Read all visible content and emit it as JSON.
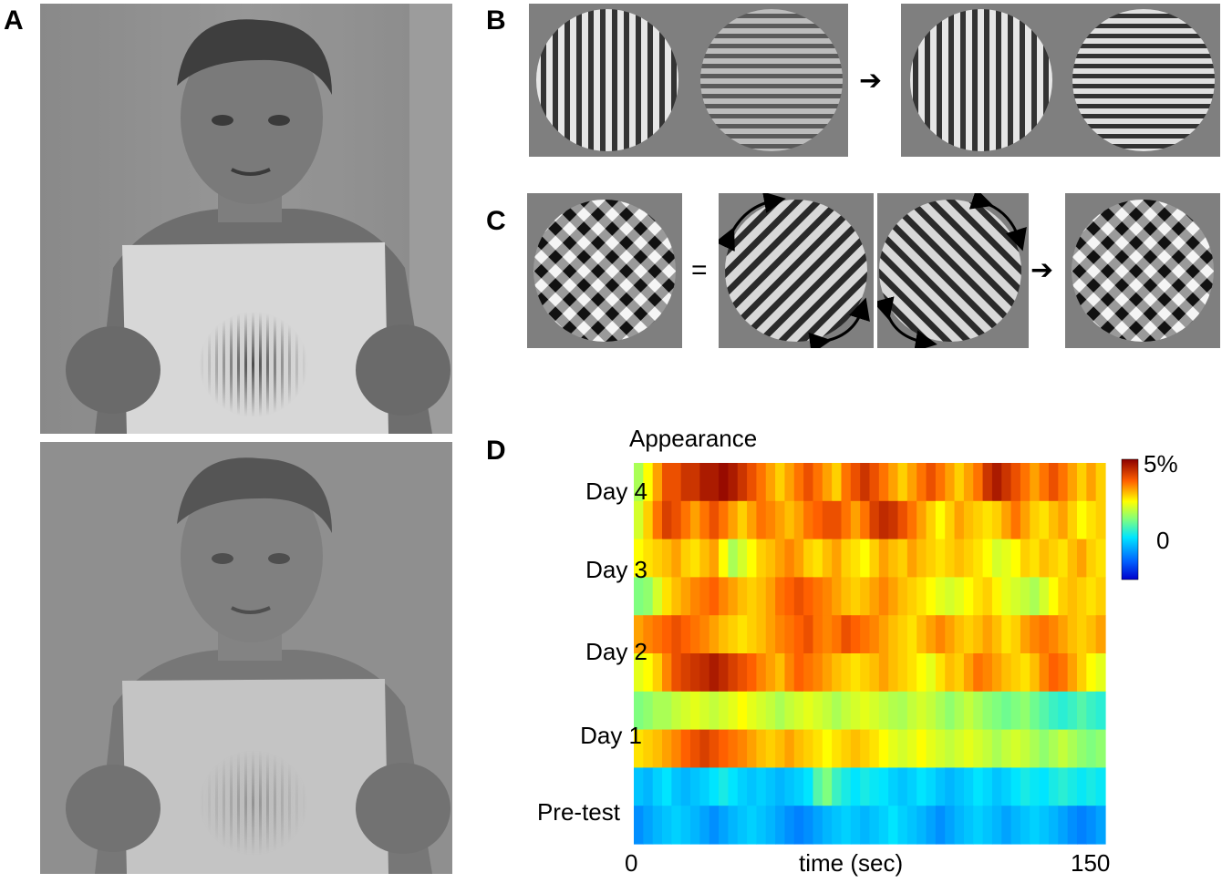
{
  "panels": {
    "a": "A",
    "b": "B",
    "c": "C",
    "d": "D"
  },
  "symbols": {
    "arrow": "➔",
    "equals": "="
  },
  "chart_data": {
    "type": "heatmap",
    "title": "Appearance",
    "xlabel": "time (sec)",
    "xlim": [
      0,
      150
    ],
    "x_ticks": [
      "0",
      "150"
    ],
    "rows": [
      "Day 4",
      "Day 3",
      "Day 2",
      "Day 1",
      "Pre-test"
    ],
    "colorbar": {
      "min_label": "0",
      "max_label": "5%",
      "colormap": "jet"
    },
    "colors": {
      "low": "#0000cc",
      "high": "#8b0000"
    },
    "segment_count": 50,
    "subrow_levels": [
      [
        0.55,
        0.65,
        0.75,
        0.85,
        0.85,
        0.9,
        0.9,
        0.95,
        0.95,
        0.98,
        0.95,
        0.9,
        0.85,
        0.8,
        0.75,
        0.7,
        0.75,
        0.8,
        0.85,
        0.8,
        0.75,
        0.7,
        0.8,
        0.85,
        0.9,
        0.85,
        0.8,
        0.75,
        0.7,
        0.75,
        0.8,
        0.85,
        0.8,
        0.75,
        0.7,
        0.75,
        0.8,
        0.9,
        0.95,
        0.9,
        0.85,
        0.8,
        0.75,
        0.8,
        0.85,
        0.8,
        0.75,
        0.7,
        0.75,
        0.7
      ],
      [
        0.6,
        0.7,
        0.8,
        0.88,
        0.85,
        0.8,
        0.75,
        0.8,
        0.85,
        0.8,
        0.75,
        0.7,
        0.75,
        0.8,
        0.78,
        0.75,
        0.72,
        0.75,
        0.8,
        0.82,
        0.85,
        0.85,
        0.8,
        0.75,
        0.8,
        0.88,
        0.92,
        0.9,
        0.85,
        0.8,
        0.75,
        0.7,
        0.65,
        0.7,
        0.75,
        0.72,
        0.7,
        0.68,
        0.7,
        0.75,
        0.8,
        0.75,
        0.7,
        0.68,
        0.72,
        0.75,
        0.7,
        0.65,
        0.68,
        0.7
      ],
      [
        0.65,
        0.68,
        0.7,
        0.72,
        0.75,
        0.7,
        0.68,
        0.72,
        0.75,
        0.65,
        0.55,
        0.6,
        0.65,
        0.7,
        0.72,
        0.75,
        0.78,
        0.75,
        0.7,
        0.68,
        0.72,
        0.75,
        0.7,
        0.68,
        0.65,
        0.7,
        0.75,
        0.72,
        0.7,
        0.75,
        0.72,
        0.7,
        0.68,
        0.7,
        0.72,
        0.7,
        0.68,
        0.65,
        0.6,
        0.62,
        0.65,
        0.7,
        0.68,
        0.72,
        0.7,
        0.68,
        0.72,
        0.75,
        0.7,
        0.68
      ],
      [
        0.5,
        0.52,
        0.6,
        0.68,
        0.72,
        0.75,
        0.78,
        0.8,
        0.82,
        0.78,
        0.75,
        0.72,
        0.7,
        0.72,
        0.75,
        0.8,
        0.82,
        0.85,
        0.82,
        0.8,
        0.78,
        0.75,
        0.72,
        0.7,
        0.72,
        0.75,
        0.78,
        0.75,
        0.72,
        0.7,
        0.68,
        0.65,
        0.62,
        0.6,
        0.62,
        0.65,
        0.68,
        0.7,
        0.66,
        0.62,
        0.6,
        0.58,
        0.55,
        0.6,
        0.65,
        0.7,
        0.72,
        0.7,
        0.68,
        0.7
      ],
      [
        0.75,
        0.78,
        0.8,
        0.82,
        0.85,
        0.82,
        0.8,
        0.78,
        0.75,
        0.72,
        0.7,
        0.68,
        0.7,
        0.72,
        0.75,
        0.78,
        0.8,
        0.82,
        0.85,
        0.8,
        0.78,
        0.8,
        0.85,
        0.82,
        0.8,
        0.78,
        0.75,
        0.72,
        0.7,
        0.68,
        0.72,
        0.75,
        0.78,
        0.75,
        0.72,
        0.7,
        0.72,
        0.75,
        0.72,
        0.68,
        0.7,
        0.75,
        0.78,
        0.8,
        0.78,
        0.75,
        0.72,
        0.7,
        0.72,
        0.75
      ],
      [
        0.62,
        0.65,
        0.7,
        0.78,
        0.85,
        0.88,
        0.9,
        0.92,
        0.95,
        0.92,
        0.88,
        0.85,
        0.82,
        0.78,
        0.75,
        0.72,
        0.78,
        0.82,
        0.8,
        0.78,
        0.75,
        0.72,
        0.7,
        0.68,
        0.7,
        0.72,
        0.75,
        0.72,
        0.7,
        0.68,
        0.65,
        0.62,
        0.68,
        0.72,
        0.7,
        0.75,
        0.8,
        0.78,
        0.75,
        0.72,
        0.7,
        0.68,
        0.72,
        0.78,
        0.82,
        0.8,
        0.75,
        0.7,
        0.65,
        0.62
      ],
      [
        0.5,
        0.52,
        0.55,
        0.55,
        0.58,
        0.6,
        0.62,
        0.6,
        0.58,
        0.6,
        0.62,
        0.65,
        0.62,
        0.6,
        0.58,
        0.55,
        0.58,
        0.6,
        0.62,
        0.6,
        0.58,
        0.55,
        0.58,
        0.6,
        0.62,
        0.6,
        0.58,
        0.56,
        0.55,
        0.58,
        0.6,
        0.58,
        0.55,
        0.52,
        0.55,
        0.58,
        0.55,
        0.52,
        0.5,
        0.48,
        0.5,
        0.52,
        0.48,
        0.45,
        0.42,
        0.4,
        0.42,
        0.45,
        0.42,
        0.4
      ],
      [
        0.68,
        0.7,
        0.72,
        0.75,
        0.78,
        0.82,
        0.85,
        0.88,
        0.85,
        0.82,
        0.8,
        0.78,
        0.75,
        0.72,
        0.7,
        0.72,
        0.75,
        0.72,
        0.7,
        0.68,
        0.65,
        0.68,
        0.7,
        0.72,
        0.7,
        0.68,
        0.65,
        0.62,
        0.6,
        0.62,
        0.65,
        0.62,
        0.6,
        0.58,
        0.6,
        0.62,
        0.6,
        0.58,
        0.55,
        0.58,
        0.6,
        0.58,
        0.55,
        0.52,
        0.55,
        0.58,
        0.55,
        0.52,
        0.5,
        0.52
      ],
      [
        0.3,
        0.28,
        0.32,
        0.35,
        0.3,
        0.28,
        0.3,
        0.32,
        0.35,
        0.38,
        0.35,
        0.32,
        0.3,
        0.32,
        0.3,
        0.28,
        0.3,
        0.32,
        0.35,
        0.45,
        0.5,
        0.42,
        0.38,
        0.35,
        0.38,
        0.36,
        0.35,
        0.32,
        0.3,
        0.32,
        0.35,
        0.33,
        0.3,
        0.28,
        0.3,
        0.32,
        0.35,
        0.33,
        0.3,
        0.32,
        0.35,
        0.38,
        0.36,
        0.35,
        0.38,
        0.4,
        0.38,
        0.36,
        0.38,
        0.36
      ],
      [
        0.22,
        0.25,
        0.28,
        0.3,
        0.32,
        0.3,
        0.28,
        0.25,
        0.22,
        0.25,
        0.28,
        0.3,
        0.32,
        0.3,
        0.28,
        0.25,
        0.22,
        0.2,
        0.22,
        0.25,
        0.28,
        0.3,
        0.32,
        0.3,
        0.28,
        0.3,
        0.32,
        0.35,
        0.32,
        0.3,
        0.28,
        0.25,
        0.22,
        0.25,
        0.28,
        0.3,
        0.32,
        0.3,
        0.28,
        0.25,
        0.28,
        0.3,
        0.32,
        0.3,
        0.28,
        0.25,
        0.22,
        0.2,
        0.22,
        0.25
      ]
    ]
  }
}
